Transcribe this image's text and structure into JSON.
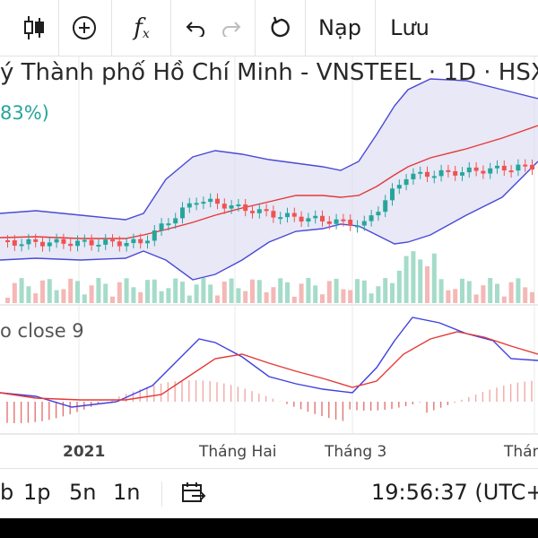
{
  "toolbar": {
    "candles_icon": "candlestick-icon",
    "add_icon": "plus-circle-icon",
    "indicator_label": "f",
    "indicator_sub": "x",
    "undo_icon": "undo-icon",
    "redo_icon": "redo-icon",
    "reset_icon": "reload-icon",
    "load_label": "Nạp",
    "save_label": "Lưu"
  },
  "chart": {
    "title": "ý Thành phố Hồ Chí Minh - VNSTEEL · 1D · HSX",
    "change": "83%)",
    "macd_label": "o close 9",
    "colors": {
      "up": "#26a69a",
      "down": "#ef5350",
      "band_fill": "#d9d9f2",
      "band_line": "#4a4ad6",
      "basis": "#e53935",
      "macd": "#3f3fe0",
      "signal": "#e53935"
    }
  },
  "xaxis": {
    "labels": [
      "2021",
      "Tháng Hai",
      "Tháng 3",
      "Thán"
    ]
  },
  "bottom": {
    "range_b": "b",
    "range_1p": "1p",
    "range_5n": "5n",
    "range_1n": "1n",
    "goto_icon": "calendar-goto-icon",
    "clock": "19:56:37 (UTC+7"
  }
}
